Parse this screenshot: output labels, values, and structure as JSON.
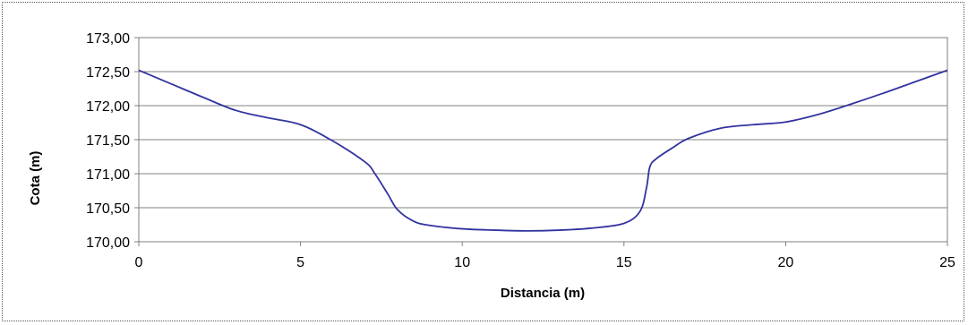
{
  "chart_data": {
    "type": "line",
    "xlabel": "Distancia (m)",
    "ylabel": "Cota (m)",
    "xlim": [
      0,
      25
    ],
    "ylim": [
      170.0,
      173.0
    ],
    "x_ticks": [
      0,
      5,
      10,
      15,
      20,
      25
    ],
    "x_tick_labels": [
      "0",
      "5",
      "10",
      "15",
      "20",
      "25"
    ],
    "y_ticks": [
      170.0,
      170.5,
      171.0,
      171.5,
      172.0,
      172.5,
      173.0
    ],
    "y_tick_labels": [
      "170,00",
      "170,50",
      "171,00",
      "171,50",
      "172,00",
      "172,50",
      "173,00"
    ],
    "grid": "horizontal",
    "legend": "none",
    "series": [
      {
        "color": "#3333a0",
        "x": [
          0,
          1,
          2,
          3,
          4,
          5,
          6,
          7,
          7.3,
          7.7,
          8,
          8.5,
          9,
          10,
          11,
          12,
          13,
          14,
          15,
          15.5,
          15.7,
          15.8,
          16,
          16.5,
          17,
          18,
          19,
          20,
          21,
          22,
          23,
          24,
          25
        ],
        "y": [
          172.52,
          172.32,
          172.12,
          171.93,
          171.82,
          171.72,
          171.48,
          171.17,
          171.0,
          170.7,
          170.47,
          170.3,
          170.24,
          170.19,
          170.17,
          170.16,
          170.17,
          170.2,
          170.27,
          170.45,
          170.8,
          171.1,
          171.22,
          171.38,
          171.52,
          171.67,
          171.72,
          171.76,
          171.87,
          172.02,
          172.18,
          172.35,
          172.52
        ]
      }
    ]
  }
}
